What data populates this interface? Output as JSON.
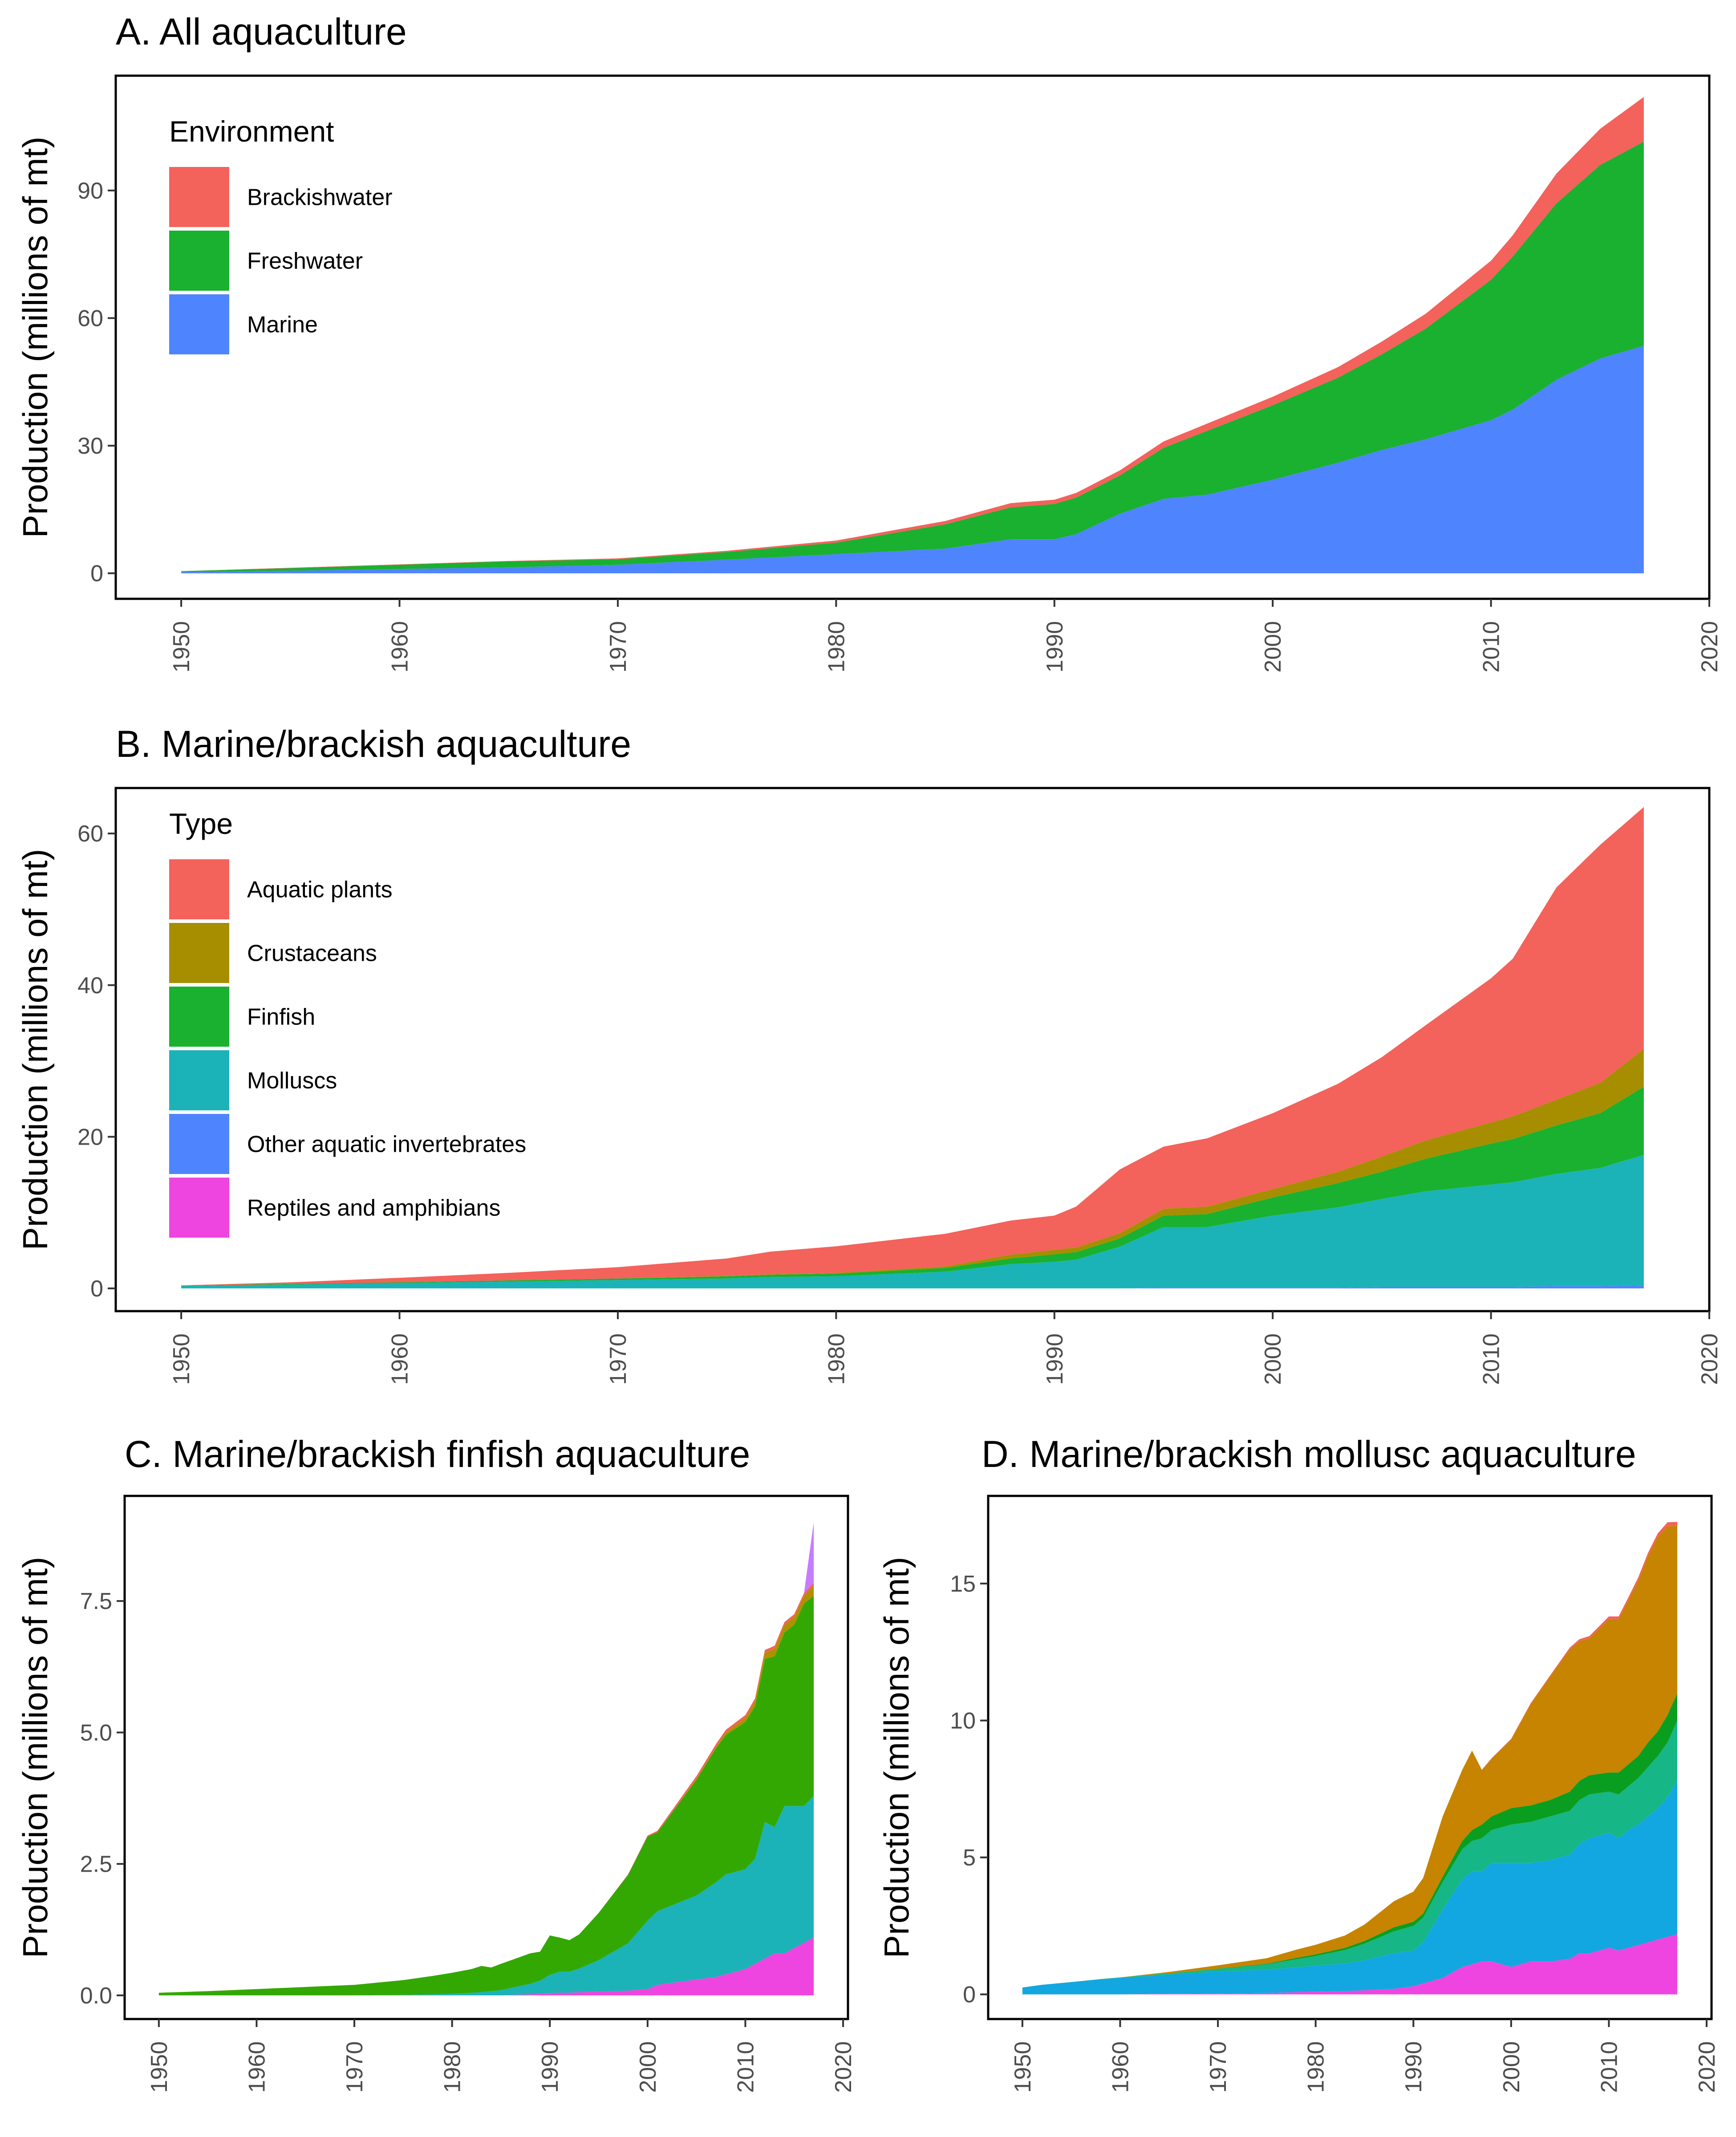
{
  "chart_data": [
    {
      "type": "area",
      "stacked": true,
      "title": "A. All aquaculture",
      "ylabel": "Production (millions of mt)",
      "xlabel": "",
      "xlim": [
        1947,
        2020
      ],
      "ylim": [
        -6,
        117
      ],
      "xticks": [
        1950,
        1960,
        1970,
        1980,
        1990,
        2000,
        2010,
        2020
      ],
      "yticks": [
        0,
        30,
        60,
        90
      ],
      "ytick_labels": [
        "0",
        "30",
        "60",
        "90"
      ],
      "grid": false,
      "legend": {
        "title": "Environment",
        "position": "top-left",
        "entries": [
          "Brackishwater",
          "Freshwater",
          "Marine"
        ]
      },
      "x": [
        1950,
        1955,
        1960,
        1965,
        1970,
        1975,
        1980,
        1985,
        1988,
        1990,
        1991,
        1993,
        1995,
        1997,
        2000,
        2003,
        2005,
        2007,
        2010,
        2011,
        2013,
        2015,
        2017
      ],
      "series": [
        {
          "name": "Marine",
          "color": "#4F84FF",
          "values": [
            0.3,
            0.6,
            1.0,
            1.4,
            2.0,
            3.2,
            4.5,
            5.8,
            8.0,
            8.0,
            9.2,
            14.0,
            17.5,
            18.5,
            22.0,
            26.0,
            29.0,
            31.5,
            36.0,
            38.5,
            45.5,
            50.5,
            53.5
          ]
        },
        {
          "name": "Freshwater",
          "color": "#19B12F",
          "values": [
            0.2,
            0.6,
            1.0,
            1.4,
            1.3,
            1.8,
            2.7,
            5.7,
            7.5,
            8.3,
            8.6,
            9.0,
            12.0,
            15.0,
            17.5,
            20.0,
            22.5,
            26.0,
            33.0,
            36.0,
            41.5,
            45.5,
            48.0
          ]
        },
        {
          "name": "Brackishwater",
          "color": "#F3625B",
          "values": [
            0.0,
            0.1,
            0.1,
            0.1,
            0.2,
            0.3,
            0.5,
            0.8,
            1.0,
            1.0,
            1.1,
            1.2,
            1.5,
            1.7,
            2.0,
            2.5,
            3.0,
            3.5,
            4.5,
            5.0,
            7.0,
            8.5,
            10.5
          ]
        }
      ]
    },
    {
      "type": "area",
      "stacked": true,
      "title": "B. Marine/brackish aquaculture",
      "ylabel": "Production (millions of mt)",
      "xlabel": "",
      "xlim": [
        1947,
        2020
      ],
      "ylim": [
        -3,
        66
      ],
      "xticks": [
        1950,
        1960,
        1970,
        1980,
        1990,
        2000,
        2010,
        2020
      ],
      "yticks": [
        0,
        20,
        40,
        60
      ],
      "ytick_labels": [
        "0",
        "20",
        "40",
        "60"
      ],
      "grid": false,
      "legend": {
        "title": "Type",
        "position": "top-left",
        "entries": [
          "Aquatic plants",
          "Crustaceans",
          "Finfish",
          "Molluscs",
          "Other aquatic invertebrates",
          "Reptiles and amphibians"
        ]
      },
      "x": [
        1950,
        1955,
        1960,
        1965,
        1970,
        1975,
        1977,
        1980,
        1985,
        1988,
        1990,
        1991,
        1993,
        1995,
        1997,
        2000,
        2003,
        2005,
        2007,
        2010,
        2011,
        2013,
        2015,
        2017
      ],
      "series": [
        {
          "name": "Reptiles and amphibians",
          "color": "#EF45E0",
          "values": [
            0,
            0,
            0,
            0,
            0,
            0,
            0,
            0,
            0,
            0,
            0,
            0,
            0,
            0,
            0,
            0,
            0,
            0,
            0,
            0,
            0,
            0,
            0,
            0
          ]
        },
        {
          "name": "Other aquatic invertebrates",
          "color": "#4F84FF",
          "values": [
            0,
            0,
            0,
            0,
            0,
            0,
            0,
            0,
            0,
            0,
            0,
            0,
            0,
            0.1,
            0.1,
            0.1,
            0.1,
            0.2,
            0.2,
            0.2,
            0.2,
            0.3,
            0.3,
            0.4
          ]
        },
        {
          "name": "Molluscs",
          "color": "#1BB3B8",
          "values": [
            0.3,
            0.5,
            0.7,
            0.9,
            1.1,
            1.3,
            1.5,
            1.6,
            2.2,
            3.2,
            3.5,
            3.8,
            5.5,
            8.0,
            8.0,
            9.5,
            10.6,
            11.6,
            12.6,
            13.5,
            13.8,
            14.8,
            15.6,
            17.2
          ]
        },
        {
          "name": "Finfish",
          "color": "#19B12F",
          "values": [
            0.05,
            0.1,
            0.1,
            0.15,
            0.2,
            0.3,
            0.3,
            0.35,
            0.5,
            0.75,
            1.0,
            1.0,
            1.1,
            1.5,
            1.7,
            2.4,
            3.2,
            3.6,
            4.3,
            5.4,
            5.7,
            6.4,
            7.2,
            9.0
          ]
        },
        {
          "name": "Crustaceans",
          "color": "#A68E00",
          "values": [
            0,
            0,
            0,
            0,
            0,
            0.05,
            0.05,
            0.1,
            0.2,
            0.5,
            0.6,
            0.6,
            0.7,
            0.9,
            1.0,
            1.1,
            1.5,
            2.0,
            2.4,
            2.8,
            3.0,
            3.4,
            4.0,
            5.0
          ]
        },
        {
          "name": "Aquatic plants",
          "color": "#F3625B",
          "values": [
            0.05,
            0.2,
            0.6,
            1.0,
            1.5,
            2.3,
            3.0,
            3.5,
            4.3,
            4.5,
            4.5,
            5.4,
            8.4,
            8.2,
            9.0,
            10.0,
            11.6,
            13.1,
            15.2,
            19.0,
            20.8,
            28.0,
            31.4,
            31.9
          ]
        }
      ]
    },
    {
      "type": "area",
      "stacked": true,
      "title": "C. Marine/brackish finfish aquaculture",
      "ylabel": "Production (millions of mt)",
      "xlabel": "",
      "xlim": [
        1946.5,
        2020.5
      ],
      "ylim": [
        -0.45,
        9.5
      ],
      "xticks": [
        1950,
        1960,
        1970,
        1980,
        1990,
        2000,
        2010,
        2020
      ],
      "yticks": [
        0,
        2.5,
        5,
        7.5
      ],
      "ytick_labels": [
        "0.0",
        "2.5",
        "5.0",
        "7.5"
      ],
      "grid": false,
      "x": [
        1950,
        1955,
        1960,
        1965,
        1970,
        1975,
        1978,
        1980,
        1982,
        1983,
        1984,
        1985,
        1988,
        1989,
        1990,
        1991,
        1992,
        1993,
        1995,
        1998,
        2000,
        2001,
        2003,
        2005,
        2007,
        2008,
        2010,
        2011,
        2012,
        2013,
        2014,
        2015,
        2016,
        2017
      ],
      "series": [
        {
          "name": "",
          "color": "#EF45E0",
          "values": [
            0,
            0,
            0,
            0,
            0,
            0,
            0,
            0,
            0,
            0,
            0,
            0,
            0.02,
            0.03,
            0.04,
            0.05,
            0.05,
            0.06,
            0.07,
            0.09,
            0.12,
            0.2,
            0.25,
            0.3,
            0.35,
            0.4,
            0.5,
            0.6,
            0.7,
            0.8,
            0.8,
            0.9,
            1.0,
            1.1
          ]
        },
        {
          "name": "",
          "color": "#1BB3B8",
          "values": [
            0,
            0,
            0,
            0,
            0,
            0.01,
            0.02,
            0.03,
            0.05,
            0.06,
            0.08,
            0.1,
            0.2,
            0.25,
            0.35,
            0.4,
            0.4,
            0.45,
            0.6,
            0.9,
            1.3,
            1.4,
            1.5,
            1.6,
            1.8,
            1.9,
            1.9,
            2.0,
            2.6,
            2.4,
            2.8,
            2.7,
            2.6,
            2.7
          ]
        },
        {
          "name": "",
          "color": "#33A802",
          "values": [
            0.05,
            0.08,
            0.12,
            0.16,
            0.2,
            0.28,
            0.35,
            0.4,
            0.45,
            0.5,
            0.45,
            0.5,
            0.58,
            0.55,
            0.75,
            0.65,
            0.6,
            0.65,
            0.9,
            1.3,
            1.6,
            1.5,
            1.85,
            2.2,
            2.55,
            2.65,
            2.8,
            2.9,
            3.1,
            3.25,
            3.3,
            3.45,
            3.85,
            3.8
          ]
        },
        {
          "name": "",
          "color": "#B09000",
          "values": [
            0,
            0,
            0,
            0,
            0,
            0,
            0,
            0,
            0,
            0,
            0,
            0,
            0,
            0,
            0,
            0,
            0,
            0,
            0,
            0,
            0,
            0,
            0.01,
            0.02,
            0.03,
            0.05,
            0.08,
            0.1,
            0.12,
            0.15,
            0.15,
            0.15,
            0.15,
            0.2
          ]
        },
        {
          "name": "",
          "color": "#F3625B",
          "values": [
            0,
            0,
            0,
            0,
            0,
            0,
            0,
            0,
            0,
            0,
            0,
            0,
            0,
            0,
            0,
            0,
            0,
            0,
            0,
            0.01,
            0.02,
            0.03,
            0.04,
            0.05,
            0.05,
            0.05,
            0.05,
            0.05,
            0.05,
            0.05,
            0.05,
            0.05,
            0.05,
            0.05
          ]
        },
        {
          "name": "",
          "color": "#C77CFF",
          "values": [
            0,
            0,
            0,
            0,
            0,
            0,
            0,
            0,
            0,
            0,
            0,
            0,
            0,
            0,
            0,
            0,
            0,
            0,
            0,
            0,
            0,
            0,
            0,
            0,
            0,
            0,
            0,
            0,
            0,
            0,
            0,
            0,
            0,
            1.15
          ]
        }
      ]
    },
    {
      "type": "area",
      "stacked": true,
      "title": "D. Marine/brackish mollusc aquaculture",
      "ylabel": "Production (millions of mt)",
      "xlabel": "",
      "xlim": [
        1946.5,
        2020.5
      ],
      "ylim": [
        -0.9,
        18.2
      ],
      "xticks": [
        1950,
        1960,
        1970,
        1980,
        1990,
        2000,
        2010,
        2020
      ],
      "yticks": [
        0,
        5,
        10,
        15
      ],
      "ytick_labels": [
        "0",
        "5",
        "10",
        "15"
      ],
      "grid": false,
      "x": [
        1950,
        1952,
        1955,
        1958,
        1960,
        1965,
        1970,
        1975,
        1978,
        1980,
        1983,
        1985,
        1988,
        1990,
        1991,
        1993,
        1995,
        1996,
        1997,
        1998,
        2000,
        2002,
        2004,
        2006,
        2007,
        2008,
        2010,
        2011,
        2012,
        2013,
        2014,
        2015,
        2016,
        2017
      ],
      "series": [
        {
          "name": "",
          "color": "#EF45E0",
          "values": [
            0,
            0,
            0,
            0,
            0,
            0.02,
            0.03,
            0.05,
            0.08,
            0.1,
            0.12,
            0.15,
            0.2,
            0.3,
            0.4,
            0.6,
            1.0,
            1.1,
            1.2,
            1.2,
            1.0,
            1.2,
            1.2,
            1.3,
            1.5,
            1.5,
            1.7,
            1.6,
            1.7,
            1.8,
            1.9,
            2.0,
            2.1,
            2.2
          ]
        },
        {
          "name": "",
          "color": "#12A7E1",
          "values": [
            0.25,
            0.35,
            0.45,
            0.55,
            0.6,
            0.7,
            0.8,
            0.85,
            0.9,
            0.95,
            1.0,
            1.1,
            1.3,
            1.3,
            1.5,
            2.5,
            3.2,
            3.4,
            3.3,
            3.6,
            3.8,
            3.6,
            3.7,
            3.8,
            4.0,
            4.2,
            4.2,
            4.1,
            4.3,
            4.4,
            4.6,
            4.8,
            5.1,
            5.6
          ]
        },
        {
          "name": "",
          "color": "#16B686",
          "values": [
            0,
            0,
            0,
            0.01,
            0.02,
            0.05,
            0.1,
            0.2,
            0.3,
            0.35,
            0.5,
            0.6,
            0.8,
            0.9,
            0.9,
            1.0,
            1.1,
            1.1,
            1.2,
            1.2,
            1.4,
            1.5,
            1.6,
            1.6,
            1.6,
            1.6,
            1.5,
            1.6,
            1.6,
            1.7,
            1.8,
            1.9,
            2.0,
            2.2
          ]
        },
        {
          "name": "",
          "color": "#0A9E20",
          "values": [
            0,
            0,
            0,
            0,
            0,
            0,
            0.01,
            0.02,
            0.05,
            0.06,
            0.08,
            0.1,
            0.15,
            0.15,
            0.15,
            0.2,
            0.3,
            0.4,
            0.5,
            0.5,
            0.6,
            0.6,
            0.6,
            0.7,
            0.7,
            0.7,
            0.7,
            0.8,
            0.8,
            0.8,
            0.9,
            0.9,
            1.0,
            1.0
          ]
        },
        {
          "name": "",
          "color": "#C68400",
          "values": [
            0,
            0,
            0,
            0,
            0,
            0.05,
            0.12,
            0.2,
            0.3,
            0.35,
            0.45,
            0.6,
            0.95,
            1.1,
            1.3,
            2.2,
            2.6,
            2.9,
            2.0,
            2.1,
            2.5,
            3.7,
            4.5,
            5.2,
            5.1,
            5.0,
            5.6,
            5.6,
            6.0,
            6.4,
            6.8,
            7.1,
            6.9,
            6.1
          ]
        },
        {
          "name": "",
          "color": "#F3625B",
          "values": [
            0,
            0,
            0,
            0,
            0,
            0,
            0,
            0,
            0,
            0,
            0,
            0,
            0,
            0,
            0,
            0,
            0,
            0,
            0,
            0.02,
            0.03,
            0.03,
            0.05,
            0.06,
            0.07,
            0.08,
            0.1,
            0.1,
            0.1,
            0.12,
            0.12,
            0.13,
            0.14,
            0.15
          ]
        }
      ]
    }
  ]
}
